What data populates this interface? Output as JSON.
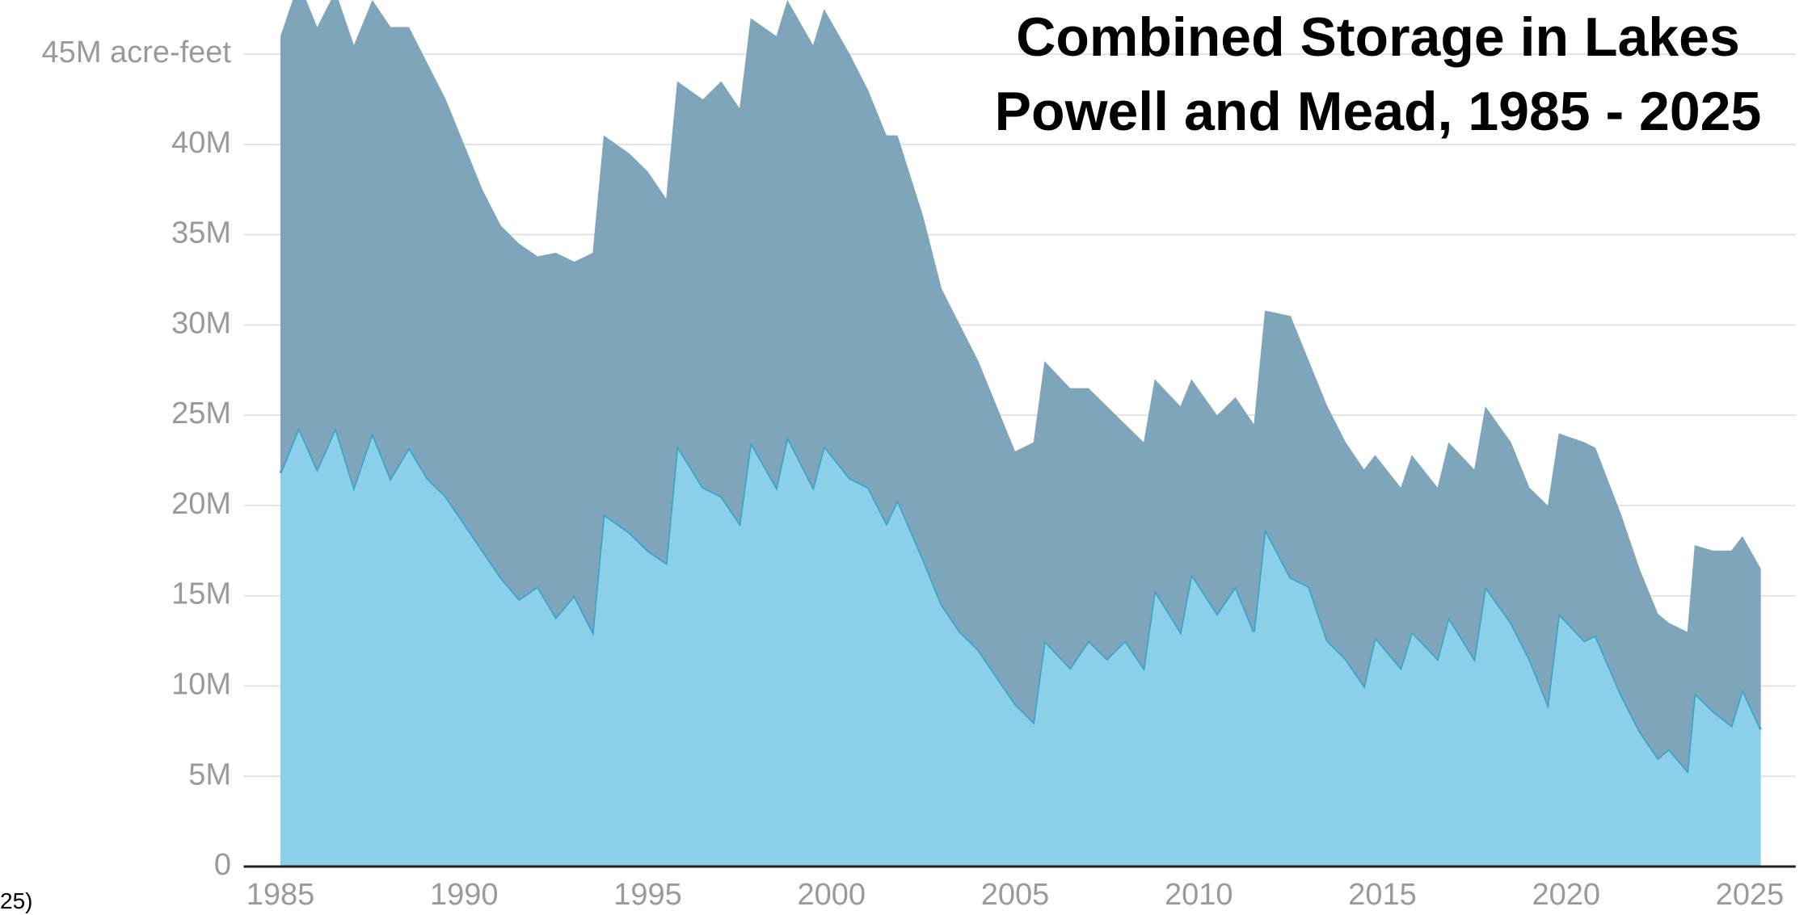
{
  "chart_data": {
    "type": "stacked_area",
    "title": "Combined Storage in Lakes Powell and Mead, 1985 - 2025",
    "note": "25)",
    "x": [
      1985.0,
      1985.5,
      1986.0,
      1986.5,
      1987.0,
      1987.5,
      1988.0,
      1988.5,
      1989.0,
      1989.5,
      1990.0,
      1990.5,
      1991.0,
      1991.5,
      1992.0,
      1992.5,
      1993.0,
      1993.5,
      1993.8,
      1994.5,
      1995.0,
      1995.5,
      1995.8,
      1996.5,
      1997.0,
      1997.5,
      1997.8,
      1998.5,
      1998.8,
      1999.5,
      1999.8,
      2000.5,
      2001.0,
      2001.5,
      2001.8,
      2002.5,
      2003.0,
      2003.5,
      2004.0,
      2004.5,
      2005.0,
      2005.5,
      2005.8,
      2006.5,
      2007.0,
      2007.5,
      2008.0,
      2008.5,
      2008.8,
      2009.5,
      2009.8,
      2010.5,
      2011.0,
      2011.5,
      2011.8,
      2012.5,
      2013.0,
      2013.5,
      2014.0,
      2014.5,
      2014.8,
      2015.5,
      2015.8,
      2016.5,
      2016.8,
      2017.5,
      2017.8,
      2018.5,
      2019.0,
      2019.5,
      2019.8,
      2020.5,
      2020.8,
      2021.5,
      2022.0,
      2022.5,
      2022.8,
      2023.3,
      2023.5,
      2024.0,
      2024.5,
      2024.8,
      2025.3
    ],
    "series": [
      {
        "color": "#8ccfe8",
        "line_color": "#2ea3cc",
        "values": [
          21800000,
          24300000,
          22000000,
          24300000,
          21000000,
          24000000,
          21500000,
          23200000,
          21500000,
          20500000,
          19000000,
          17500000,
          16000000,
          14800000,
          15500000,
          13800000,
          15000000,
          13000000,
          19500000,
          18500000,
          17500000,
          16800000,
          23300000,
          21000000,
          20500000,
          19000000,
          23500000,
          21000000,
          23800000,
          21000000,
          23300000,
          21500000,
          21000000,
          19000000,
          20300000,
          17000000,
          14500000,
          13000000,
          12000000,
          10500000,
          9000000,
          8000000,
          12500000,
          11000000,
          12500000,
          11500000,
          12500000,
          11000000,
          15300000,
          13000000,
          16200000,
          14000000,
          15500000,
          13000000,
          18700000,
          16000000,
          15500000,
          12500000,
          11500000,
          10000000,
          12700000,
          11000000,
          13000000,
          11500000,
          13800000,
          11500000,
          15500000,
          13500000,
          11500000,
          9000000,
          14000000,
          12500000,
          12800000,
          9500000,
          7500000,
          6000000,
          6500000,
          5300000,
          9600000,
          8600000,
          7800000,
          9800000,
          7600000
        ]
      },
      {
        "color": "#7fa5ba",
        "values": [
          24200000,
          24700000,
          24500000,
          24200000,
          24500000,
          24000000,
          25000000,
          23300000,
          23000000,
          22000000,
          21000000,
          20000000,
          19500000,
          19700000,
          18300000,
          20200000,
          18500000,
          21000000,
          21000000,
          21000000,
          21000000,
          20200000,
          20200000,
          21500000,
          23000000,
          23000000,
          23500000,
          25000000,
          24200000,
          24500000,
          24200000,
          23500000,
          22000000,
          21500000,
          20200000,
          19000000,
          17500000,
          17000000,
          16000000,
          15000000,
          14000000,
          15500000,
          15500000,
          15500000,
          14000000,
          14000000,
          12000000,
          12500000,
          11700000,
          12500000,
          10800000,
          11000000,
          10500000,
          11500000,
          12100000,
          14500000,
          12500000,
          13000000,
          12000000,
          12000000,
          10100000,
          10000000,
          9800000,
          9500000,
          9700000,
          10500000,
          10000000,
          10000000,
          9500000,
          11000000,
          10000000,
          11000000,
          10400000,
          10000000,
          9000000,
          8000000,
          7000000,
          7700000,
          8200000,
          8900000,
          9700000,
          8500000,
          8900000
        ]
      }
    ],
    "xlim": [
      1984,
      2026.25
    ],
    "xticks": [
      1985,
      1990,
      1995,
      2000,
      2005,
      2010,
      2015,
      2020,
      2025
    ],
    "ylim": [
      0,
      48000000
    ],
    "yticks": [
      {
        "value": 0,
        "label": "0"
      },
      {
        "value": 5000000,
        "label": "5M"
      },
      {
        "value": 10000000,
        "label": "10M"
      },
      {
        "value": 15000000,
        "label": "15M"
      },
      {
        "value": 20000000,
        "label": "20M"
      },
      {
        "value": 25000000,
        "label": "25M"
      },
      {
        "value": 30000000,
        "label": "30M"
      },
      {
        "value": 35000000,
        "label": "35M"
      },
      {
        "value": 40000000,
        "label": "40M"
      },
      {
        "value": 45000000,
        "label": "45M acre-feet"
      }
    ],
    "grid": true
  }
}
